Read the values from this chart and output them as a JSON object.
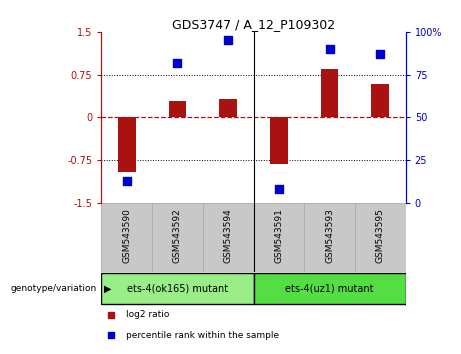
{
  "title": "GDS3747 / A_12_P109302",
  "samples": [
    "GSM543590",
    "GSM543592",
    "GSM543594",
    "GSM543591",
    "GSM543593",
    "GSM543595"
  ],
  "log2_ratio": [
    -0.95,
    0.28,
    0.32,
    -0.82,
    0.85,
    0.58
  ],
  "percentile_rank": [
    13,
    82,
    95,
    8,
    90,
    87
  ],
  "ylim_left": [
    -1.5,
    1.5
  ],
  "ylim_right": [
    0,
    100
  ],
  "yticks_left": [
    -1.5,
    -0.75,
    0,
    0.75,
    1.5
  ],
  "yticks_right": [
    0,
    25,
    50,
    75,
    100
  ],
  "ytick_labels_left": [
    "-1.5",
    "-0.75",
    "0",
    "0.75",
    "1.5"
  ],
  "ytick_labels_right": [
    "0",
    "25",
    "50",
    "75",
    "100%"
  ],
  "dotted_lines": [
    -0.75,
    0.75
  ],
  "bar_color": "#aa1111",
  "dot_color": "#0000cc",
  "bar_width": 0.35,
  "dot_size": 40,
  "groups": [
    {
      "label": "ets-4(ok165) mutant",
      "indices": [
        0,
        1,
        2
      ],
      "color": "#99ee88"
    },
    {
      "label": "ets-4(uz1) mutant",
      "indices": [
        3,
        4,
        5
      ],
      "color": "#55dd44"
    }
  ],
  "genotype_label": "genotype/variation",
  "legend_items": [
    {
      "label": "log2 ratio",
      "color": "#aa1111"
    },
    {
      "label": "percentile rank within the sample",
      "color": "#0000cc"
    }
  ],
  "bg_color_plot": "#ffffff",
  "bg_color_samples": "#c8c8c8",
  "sample_box_border": "#aaaaaa"
}
